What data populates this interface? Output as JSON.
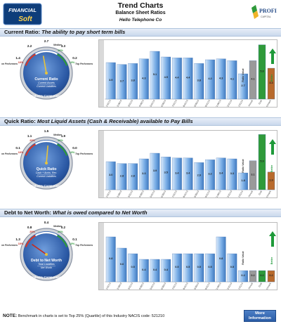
{
  "header": {
    "title": "Trend Charts",
    "subtitle": "Balance Sheet Ratios",
    "company": "Hello Telephone Co"
  },
  "logos": {
    "left_line1": "FINANCIAL",
    "left_line2": "Soft",
    "right_brand": "PROFIT",
    "right_sub": "CAPITAL"
  },
  "footer": {
    "note_label": "NOTE:",
    "note_text": "Benchmark in charts is set to Top 25% (Quartile) of this Industry NACIS code: 521210",
    "more_button": "More Information"
  },
  "colors": {
    "bar_blue": "#7aaee6",
    "bar_blue_dark": "#3f79bf",
    "goal_green": "#2f9a3a",
    "benchmark_brown": "#b86a2c",
    "annual_gray": "#9a9a9a",
    "better_arrow": "#1f9a3a"
  },
  "gauge_text": {
    "median": "Median",
    "bottom": "Bottom Performers",
    "top": "Top Performers",
    "industry": "Industry Comparison",
    "better": "Better"
  },
  "sections": [
    {
      "banner_name": "Current Ratio:",
      "banner_desc": "The ability to pay short term bills",
      "gauge_title": "Current Ratio",
      "gauge_formula1": "Current Assets",
      "gauge_formula2": "Current Liabilities",
      "gauge_ticks": [
        "1.4",
        "2.2",
        "2.7",
        "3.3",
        "0.2"
      ],
      "gauge_pcts": [
        "10%",
        "",
        "",
        "20%",
        "10%"
      ],
      "chart_data": {
        "type": "bar",
        "ylabel": "Ratio Value",
        "categories": [
          "1/31/13",
          "2/28/13",
          "3/31/13",
          "4/30/13",
          "5/31/13",
          "6/30/13",
          "7/31/13",
          "8/31/13",
          "9/30/13",
          "10/31/13",
          "11/30/13",
          "12/31/13",
          "1/31/14",
          "Annual",
          "Goal",
          "Benchmark"
        ],
        "values": [
          3.9,
          3.7,
          3.8,
          4.3,
          5.1,
          4.5,
          4.4,
          4.4,
          3.8,
          4.2,
          4.3,
          4.1,
          2.7,
          4.1,
          5.8,
          3.3
        ],
        "ylim": [
          0,
          6
        ]
      }
    },
    {
      "banner_name": "Quick Ratio:",
      "banner_desc": "Most Liquid Assets (Cash & Receivable) available to Pay Bills",
      "gauge_title": "Quick Ratio",
      "gauge_formula1": "Cash + Accts. Rec.",
      "gauge_formula2": "Current Liabilities",
      "gauge_ticks": [
        "0.1",
        "1.1",
        "1.5",
        "1.9",
        "0.0"
      ],
      "gauge_pcts": [
        "10%",
        "20%",
        "",
        "20%",
        "10%"
      ],
      "chart_data": {
        "type": "bar",
        "ylabel": "Ratio Value",
        "categories": [
          "1/31/13",
          "2/28/13",
          "3/31/13",
          "4/30/13",
          "5/31/13",
          "6/30/13",
          "7/31/13",
          "8/31/13",
          "9/30/13",
          "10/31/13",
          "11/30/13",
          "12/31/13",
          "1/31/14",
          "Annual",
          "Goal",
          "Benchmark"
        ],
        "values": [
          3.0,
          2.8,
          2.8,
          3.3,
          3.9,
          3.5,
          3.4,
          3.4,
          2.9,
          3.2,
          3.4,
          3.3,
          1.8,
          3.1,
          5.9,
          1.9
        ],
        "ylim": [
          0,
          6
        ]
      }
    },
    {
      "banner_name": "Debt to Net Worth:",
      "banner_desc": "What is owed compared to Net Worth",
      "gauge_title": "Debt to Net Worth",
      "gauge_formula1": "Total Liabilities",
      "gauge_formula2": "Net Worth",
      "gauge_ticks": [
        "1.3",
        "0.8",
        "0.4",
        "0.2",
        "0.1"
      ],
      "gauge_pcts": [
        "10%",
        "20%",
        "",
        "20%",
        "10%"
      ],
      "chart_data": {
        "type": "bar",
        "ylabel": "Ratio Value",
        "categories": [
          "1/31/13",
          "2/28/13",
          "3/31/13",
          "4/30/13",
          "5/31/13",
          "6/30/13",
          "7/31/13",
          "8/31/13",
          "9/30/13",
          "10/31/13",
          "11/30/13",
          "12/31/13",
          "1/31/14",
          "Annual",
          "Goal",
          "Benchmark"
        ],
        "values": [
          0.8,
          0.6,
          0.5,
          0.4,
          0.4,
          0.4,
          0.5,
          0.5,
          0.5,
          0.5,
          0.8,
          0.5,
          0.2,
          0.2,
          0.2,
          0.2
        ],
        "ylim": [
          0,
          1.0
        ]
      }
    }
  ]
}
